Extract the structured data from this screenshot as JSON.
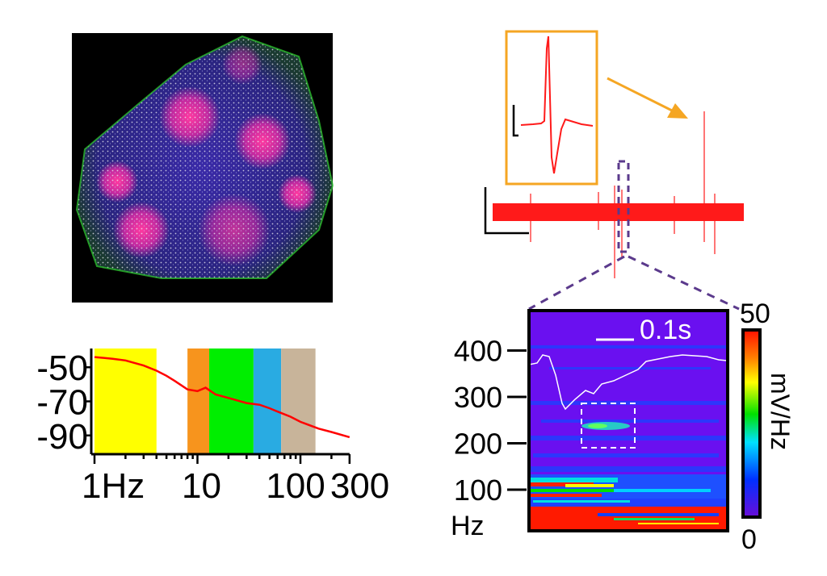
{
  "microscopy": {
    "description_icon": "tissue-fluorescence-image"
  },
  "colors": {
    "trace": "#ff1a1a",
    "inset_box": "#f5a623",
    "zoom_marker": "#5b3a8c",
    "psd_line": "#ff0000",
    "bands": [
      "#ffff00",
      "#f7941d",
      "#00ee00",
      "#29abe2",
      "#c8b49a"
    ]
  },
  "chart_data": [
    {
      "type": "line",
      "xscale": "log",
      "xlim": [
        1,
        300
      ],
      "ylim": [
        -101,
        -39
      ],
      "x_ticks": [
        {
          "value": 1,
          "label": "1Hz"
        },
        {
          "value": 10,
          "label": "10"
        },
        {
          "value": 100,
          "label": "100"
        },
        {
          "value": 300,
          "label": "300"
        }
      ],
      "y_ticks": [
        {
          "value": -50,
          "label": "-50"
        },
        {
          "value": -70,
          "label": "-70"
        },
        {
          "value": -90,
          "label": "-90"
        }
      ],
      "bands": [
        {
          "from": 1,
          "to": 4,
          "color": "#ffff00"
        },
        {
          "from": 8,
          "to": 13,
          "color": "#f7941d"
        },
        {
          "from": 13,
          "to": 35,
          "color": "#00ee00"
        },
        {
          "from": 35,
          "to": 65,
          "color": "#29abe2"
        },
        {
          "from": 65,
          "to": 140,
          "color": "#c8b49a"
        }
      ],
      "series": [
        {
          "x": [
            1,
            1.5,
            2,
            3,
            4,
            5,
            6,
            8,
            10,
            12,
            15,
            20,
            30,
            40,
            50,
            60,
            80,
            100,
            150,
            200,
            300
          ],
          "y": [
            -44,
            -45,
            -46,
            -49,
            -52,
            -55,
            -58,
            -63,
            -64,
            -62,
            -66,
            -68,
            -71,
            -72,
            -74,
            -76,
            -79,
            -82,
            -86,
            -88,
            -91
          ]
        }
      ]
    },
    {
      "type": "heatmap",
      "ylabel": "Hz",
      "y_ticks": [
        {
          "value": 400,
          "label": "400"
        },
        {
          "value": 300,
          "label": "300"
        },
        {
          "value": 200,
          "label": "200"
        },
        {
          "value": 100,
          "label": "100"
        }
      ],
      "ylim": [
        8,
        490
      ],
      "colorbar": {
        "label": "mV/Hz",
        "min_label": "0",
        "max_label": "50",
        "min": 0,
        "max": 50
      },
      "scale_bar_label": "0.1s"
    }
  ]
}
